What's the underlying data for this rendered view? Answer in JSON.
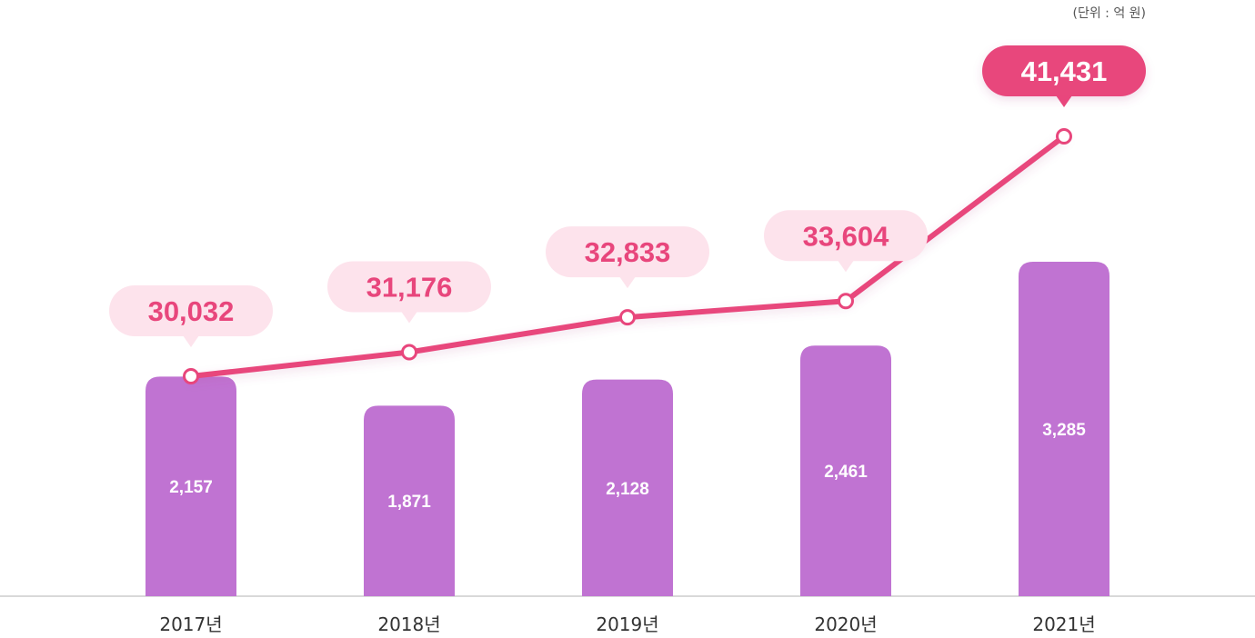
{
  "unit_label": "(단위 : 억 원)",
  "colors": {
    "bar": "#c073d2",
    "line": "#e8467c",
    "bubble": "#fde3ec",
    "bubble_text": "#e8467c",
    "highlight_bubble": "#e8467c",
    "highlight_text": "#ffffff",
    "bar_label": "#ffffff",
    "axis": "#d9d9d9",
    "tick_label": "#333333"
  },
  "chart_data": {
    "type": "bar",
    "categories": [
      "2017년",
      "2018년",
      "2019년",
      "2020년",
      "2021년"
    ],
    "series": [
      {
        "type": "bar",
        "values": [
          2157,
          1871,
          2128,
          2461,
          3285
        ],
        "labels": [
          "2,157",
          "1,871",
          "2,128",
          "2,461",
          "3,285"
        ]
      },
      {
        "type": "line",
        "values": [
          30032,
          31176,
          32833,
          33604,
          41431
        ],
        "labels": [
          "30,032",
          "31,176",
          "32,833",
          "33,604",
          "41,431"
        ]
      }
    ],
    "highlight_index": 4,
    "grid": false,
    "legend": "none"
  }
}
